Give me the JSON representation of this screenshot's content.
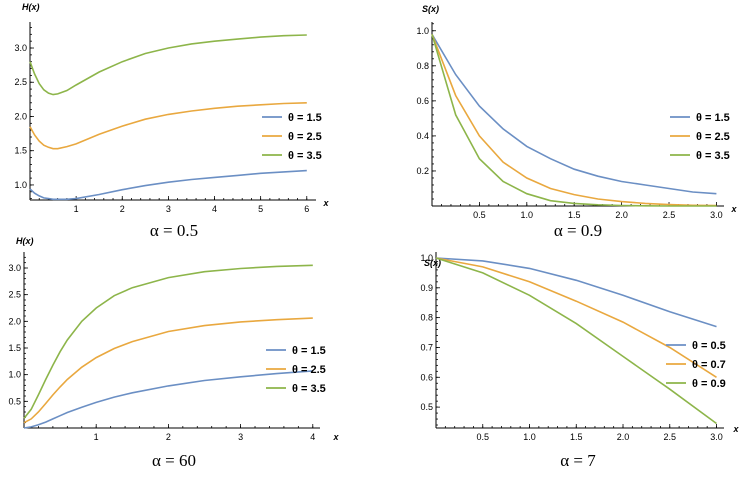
{
  "chart_data": [
    {
      "type": "line",
      "ylabel": "H(x)",
      "xlabel": "x",
      "caption": "α = 0.5",
      "xlim": [
        0,
        6.2
      ],
      "ylim": [
        0.78,
        3.38
      ],
      "xticks": [
        1,
        2,
        3,
        4,
        5,
        6
      ],
      "yticks": [
        1.0,
        1.5,
        2.0,
        2.5,
        3.0
      ],
      "legend_loc": "right",
      "series": [
        {
          "name": "θ = 1.5",
          "color": "#6b8fc4",
          "x": [
            0,
            0.1,
            0.2,
            0.3,
            0.4,
            0.5,
            0.6,
            0.8,
            1,
            1.5,
            2,
            2.5,
            3,
            3.5,
            4,
            4.5,
            5,
            5.5,
            6
          ],
          "y": [
            0.94,
            0.88,
            0.84,
            0.81,
            0.8,
            0.79,
            0.79,
            0.79,
            0.8,
            0.86,
            0.93,
            0.99,
            1.04,
            1.08,
            1.11,
            1.14,
            1.17,
            1.19,
            1.21
          ]
        },
        {
          "name": "θ = 2.5",
          "color": "#e9a83f",
          "x": [
            0,
            0.1,
            0.2,
            0.3,
            0.4,
            0.5,
            0.6,
            0.8,
            1,
            1.5,
            2,
            2.5,
            3,
            3.5,
            4,
            4.5,
            5,
            5.5,
            6
          ],
          "y": [
            1.85,
            1.73,
            1.64,
            1.58,
            1.55,
            1.53,
            1.53,
            1.56,
            1.6,
            1.74,
            1.86,
            1.96,
            2.03,
            2.08,
            2.12,
            2.15,
            2.17,
            2.19,
            2.2
          ]
        },
        {
          "name": "θ = 3.5",
          "color": "#8db54a",
          "x": [
            0,
            0.1,
            0.2,
            0.3,
            0.4,
            0.5,
            0.6,
            0.8,
            1,
            1.5,
            2,
            2.5,
            3,
            3.5,
            4,
            4.5,
            5,
            5.5,
            6
          ],
          "y": [
            2.8,
            2.62,
            2.48,
            2.39,
            2.34,
            2.32,
            2.33,
            2.38,
            2.46,
            2.65,
            2.8,
            2.92,
            3.0,
            3.06,
            3.1,
            3.13,
            3.16,
            3.18,
            3.19
          ]
        }
      ]
    },
    {
      "type": "line",
      "ylabel": "S(x)",
      "xlabel": "x",
      "caption": "α = 0.9",
      "xlim": [
        0,
        3.08
      ],
      "ylim": [
        0,
        1.05
      ],
      "xticks": [
        0.5,
        1.0,
        1.5,
        2.0,
        2.5,
        3.0
      ],
      "yticks": [
        0.2,
        0.4,
        0.6,
        0.8,
        1.0
      ],
      "legend_loc": "right",
      "series": [
        {
          "name": "θ = 1.5",
          "color": "#6b8fc4",
          "x": [
            0,
            0.25,
            0.5,
            0.75,
            1,
            1.25,
            1.5,
            1.75,
            2,
            2.25,
            2.5,
            2.75,
            3
          ],
          "y": [
            0.98,
            0.75,
            0.57,
            0.44,
            0.34,
            0.27,
            0.21,
            0.17,
            0.14,
            0.12,
            0.1,
            0.08,
            0.07
          ]
        },
        {
          "name": "θ = 2.5",
          "color": "#e9a83f",
          "x": [
            0,
            0.25,
            0.5,
            0.75,
            1,
            1.25,
            1.5,
            1.75,
            2,
            2.25,
            2.5,
            2.75,
            3
          ],
          "y": [
            0.98,
            0.63,
            0.4,
            0.25,
            0.16,
            0.1,
            0.065,
            0.04,
            0.025,
            0.015,
            0.008,
            0.004,
            0.002
          ]
        },
        {
          "name": "θ = 3.5",
          "color": "#8db54a",
          "x": [
            0,
            0.25,
            0.5,
            0.75,
            1,
            1.25,
            1.5,
            1.75,
            2,
            2.25,
            2.5,
            2.75,
            3
          ],
          "y": [
            0.98,
            0.52,
            0.27,
            0.14,
            0.07,
            0.03,
            0.015,
            0.007,
            0.003,
            0.001,
            0.0,
            0.0,
            0.0
          ]
        }
      ]
    },
    {
      "type": "line",
      "ylabel": "H(x)",
      "xlabel": "x",
      "caption": "α = 60",
      "xlim": [
        0,
        4.1
      ],
      "ylim": [
        0,
        3.3
      ],
      "xticks": [
        1,
        2,
        3,
        4
      ],
      "yticks": [
        0.5,
        1.0,
        1.5,
        2.0,
        2.5,
        3.0
      ],
      "legend_loc": "right",
      "series": [
        {
          "name": "θ = 1.5",
          "color": "#6b8fc4",
          "x": [
            0,
            0.1,
            0.2,
            0.3,
            0.4,
            0.5,
            0.6,
            0.8,
            1,
            1.25,
            1.5,
            2,
            2.5,
            3,
            3.5,
            4
          ],
          "y": [
            0.0,
            0.02,
            0.06,
            0.11,
            0.17,
            0.23,
            0.29,
            0.39,
            0.48,
            0.58,
            0.66,
            0.79,
            0.89,
            0.96,
            1.02,
            1.07
          ]
        },
        {
          "name": "θ = 2.5",
          "color": "#e9a83f",
          "x": [
            0,
            0.1,
            0.2,
            0.3,
            0.4,
            0.5,
            0.6,
            0.8,
            1,
            1.25,
            1.5,
            2,
            2.5,
            3,
            3.5,
            4
          ],
          "y": [
            0.1,
            0.17,
            0.3,
            0.46,
            0.62,
            0.77,
            0.91,
            1.14,
            1.32,
            1.49,
            1.62,
            1.81,
            1.92,
            1.99,
            2.03,
            2.06
          ]
        },
        {
          "name": "θ = 3.5",
          "color": "#8db54a",
          "x": [
            0,
            0.1,
            0.2,
            0.3,
            0.4,
            0.5,
            0.6,
            0.8,
            1,
            1.25,
            1.5,
            2,
            2.5,
            3,
            3.5,
            4
          ],
          "y": [
            0.18,
            0.35,
            0.62,
            0.91,
            1.18,
            1.43,
            1.65,
            2.0,
            2.25,
            2.48,
            2.63,
            2.82,
            2.93,
            2.99,
            3.03,
            3.05
          ]
        }
      ]
    },
    {
      "type": "line",
      "ylabel": "S(x)",
      "xlabel": "x",
      "caption": "α = 7",
      "xlim": [
        0,
        3.08
      ],
      "ylim": [
        0.43,
        1.02
      ],
      "xticks": [
        0.5,
        1.0,
        1.5,
        2.0,
        2.5,
        3.0
      ],
      "yticks": [
        0.5,
        0.6,
        0.7,
        0.8,
        0.9,
        1.0
      ],
      "legend_loc": "right",
      "series": [
        {
          "name": "θ = 0.5",
          "color": "#6b8fc4",
          "x": [
            0,
            0.5,
            1,
            1.5,
            2,
            2.5,
            3
          ],
          "y": [
            1.0,
            0.99,
            0.965,
            0.925,
            0.875,
            0.82,
            0.77
          ]
        },
        {
          "name": "θ = 0.7",
          "color": "#e9a83f",
          "x": [
            0,
            0.5,
            1,
            1.5,
            2,
            2.5,
            3
          ],
          "y": [
            1.0,
            0.97,
            0.92,
            0.855,
            0.785,
            0.7,
            0.6
          ]
        },
        {
          "name": "θ = 0.9",
          "color": "#8db54a",
          "x": [
            0,
            0.5,
            1,
            1.5,
            2,
            2.5,
            3
          ],
          "y": [
            1.0,
            0.95,
            0.875,
            0.78,
            0.67,
            0.56,
            0.445
          ]
        }
      ]
    }
  ]
}
